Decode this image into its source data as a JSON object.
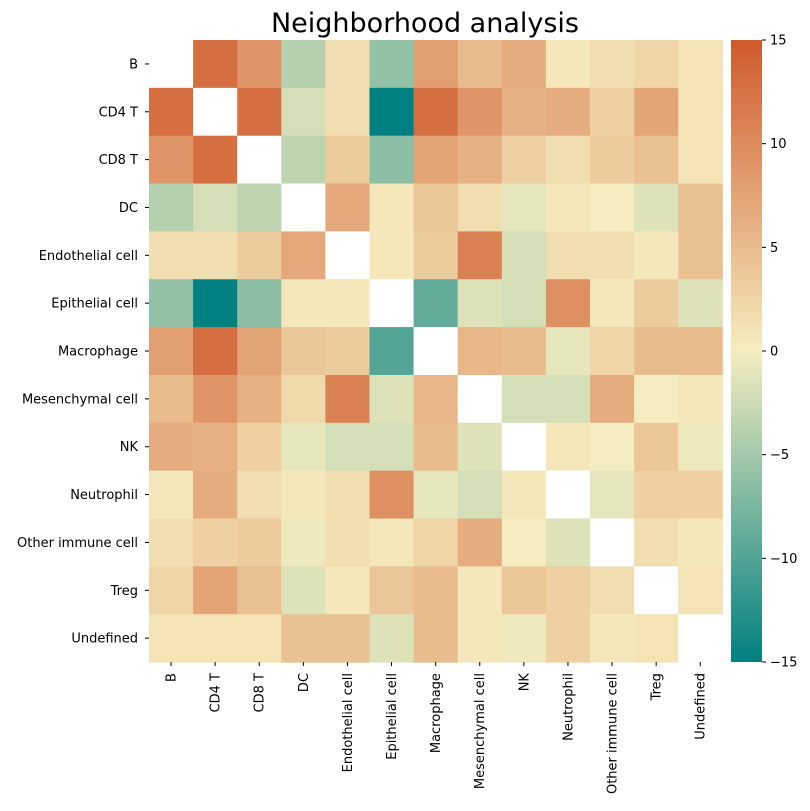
{
  "chart_data": {
    "type": "heatmap",
    "title": "Neighborhood analysis",
    "xlabel": "",
    "ylabel": "",
    "categories": [
      "B",
      "CD4 T",
      "CD8 T",
      "DC",
      "Endothelial cell",
      "Epithelial cell",
      "Macrophage",
      "Mesenchymal cell",
      "NK",
      "Neutrophil",
      "Other immune cell",
      "Treg",
      "Undefined"
    ],
    "rows": [
      "B",
      "CD4 T",
      "CD8 T",
      "DC",
      "Endothelial cell",
      "Epithelial cell",
      "Macrophage",
      "Mesenchymal cell",
      "NK",
      "Neutrophil",
      "Other immune cell",
      "Treg",
      "Undefined"
    ],
    "values": [
      [
        null,
        13,
        9,
        -4,
        1.5,
        -6,
        8,
        5,
        6.5,
        0.5,
        1.5,
        2.5,
        1
      ],
      [
        13,
        null,
        13,
        -2,
        1.5,
        -15,
        13,
        9,
        6,
        6.5,
        3,
        7.5,
        1
      ],
      [
        9,
        13,
        null,
        -3.5,
        3.5,
        -6.5,
        7.5,
        6,
        3,
        1.5,
        3.5,
        4.5,
        1
      ],
      [
        -4,
        -2,
        -3.5,
        null,
        7,
        0.5,
        4,
        1.5,
        -1,
        0.5,
        0,
        -1.5,
        4.5
      ],
      [
        1.5,
        1.5,
        3.5,
        7,
        null,
        0.5,
        3.5,
        11,
        -2,
        1.5,
        1.5,
        0.5,
        4.5
      ],
      [
        -6,
        -15,
        -6.5,
        0.5,
        0.5,
        null,
        -9,
        -1.5,
        -2,
        9.5,
        0.5,
        3.5,
        -1.5
      ],
      [
        8,
        13,
        7.5,
        4,
        3.5,
        -10,
        null,
        5.5,
        5,
        -1,
        2.5,
        5,
        5
      ],
      [
        5,
        9,
        6,
        2,
        11,
        -1.5,
        5.5,
        null,
        -2,
        -2,
        6.5,
        0,
        0.5
      ],
      [
        6.5,
        6,
        3,
        -1,
        -2,
        -2,
        5,
        -1.5,
        null,
        0.5,
        0,
        4,
        -0.5
      ],
      [
        0.5,
        6.5,
        1.5,
        0.5,
        1.5,
        9.5,
        -1,
        -2,
        0.5,
        null,
        -1,
        3,
        3
      ],
      [
        1.5,
        3,
        3.5,
        -0.5,
        1.5,
        0.5,
        2.5,
        6.5,
        0,
        -1.5,
        null,
        1.5,
        0.5
      ],
      [
        2.5,
        7.5,
        4.5,
        -1.5,
        0.5,
        4,
        5,
        0.5,
        4,
        3,
        1.5,
        null,
        1
      ],
      [
        1,
        1,
        1,
        4.5,
        4.5,
        -1.5,
        5,
        0.5,
        -0.5,
        3,
        0.5,
        1,
        null
      ]
    ],
    "vmin": -15,
    "vmax": 15,
    "colorbar_ticks": [
      15,
      10,
      5,
      0,
      -5,
      -10,
      -15
    ],
    "colorbar_tick_labels": [
      "15",
      "10",
      "5",
      "0",
      "−5",
      "−10",
      "−15"
    ],
    "colors": {
      "low": "#008080",
      "mid": "#f5edbf",
      "high": "#d05a2c",
      "nan": "#ffffff"
    }
  }
}
